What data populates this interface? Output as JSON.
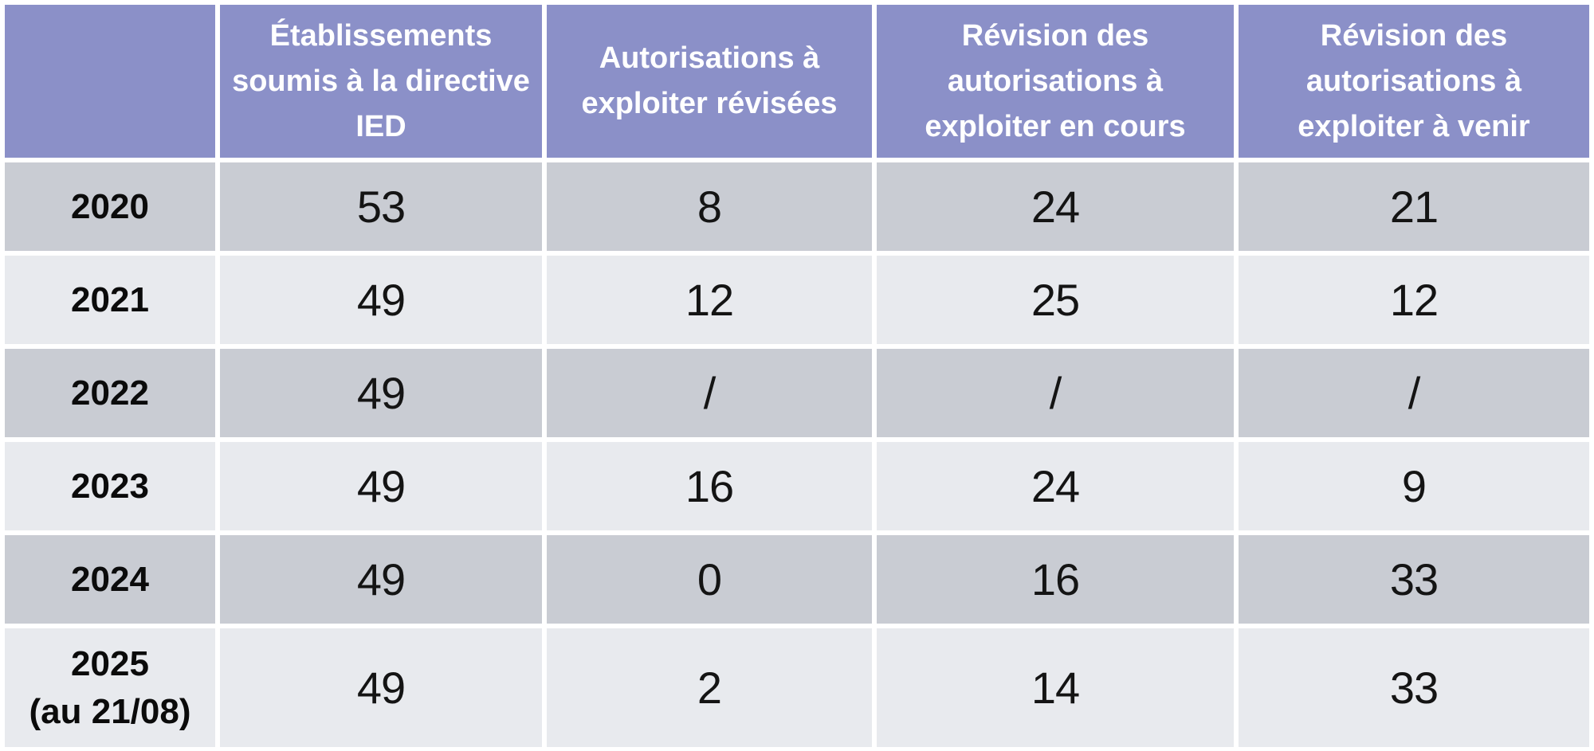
{
  "table": {
    "corner_label": "",
    "columns": [
      "",
      "Établissements soumis à la directive IED",
      "Autorisations à exploiter révisées",
      "Révision des autorisations à exploiter en cours",
      "Révision des autorisations à exploiter à venir"
    ],
    "rows": [
      {
        "year": "2020",
        "note": "",
        "values": [
          "53",
          "8",
          "24",
          "21"
        ]
      },
      {
        "year": "2021",
        "note": "",
        "values": [
          "49",
          "12",
          "25",
          "12"
        ]
      },
      {
        "year": "2022",
        "note": "",
        "values": [
          "49",
          "/",
          "/",
          "/"
        ]
      },
      {
        "year": "2023",
        "note": "",
        "values": [
          "49",
          "16",
          "24",
          "9"
        ]
      },
      {
        "year": "2024",
        "note": "",
        "values": [
          "49",
          "0",
          "16",
          "33"
        ]
      },
      {
        "year": "2025",
        "note": "(au 21/08)",
        "values": [
          "49",
          "2",
          "14",
          "33"
        ]
      }
    ],
    "colors": {
      "header_bg": "#8B90C8",
      "header_text": "#FFFFFF",
      "row_dark_bg": "#C9CCD3",
      "row_light_bg": "#E8EAEE",
      "cell_text": "#141414",
      "gutter": "#FFFFFF"
    }
  },
  "chart_data": {
    "type": "table",
    "title": "",
    "columns": [
      "",
      "Établissements soumis à la directive IED",
      "Autorisations à exploiter révisées",
      "Révision des autorisations à exploiter en cours",
      "Révision des autorisations à exploiter à venir"
    ],
    "rows": [
      [
        "2020",
        "53",
        "8",
        "24",
        "21"
      ],
      [
        "2021",
        "49",
        "12",
        "25",
        "12"
      ],
      [
        "2022",
        "49",
        "/",
        "/",
        "/"
      ],
      [
        "2023",
        "49",
        "16",
        "24",
        "9"
      ],
      [
        "2024",
        "49",
        "0",
        "16",
        "33"
      ],
      [
        "2025 (au 21/08)",
        "49",
        "2",
        "14",
        "33"
      ]
    ]
  }
}
